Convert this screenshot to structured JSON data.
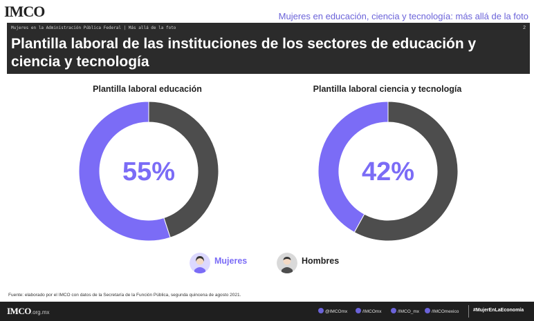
{
  "brand": {
    "logo": "IMCO"
  },
  "report_title": "Mujeres en educación, ciencia y tecnología: más allá de la foto",
  "header": {
    "breadcrumb": "Mujeres en la Administración Pública Federal | Más allá de la foto",
    "page_number": "2",
    "title": "Plantilla laboral de las instituciones de los sectores de educación y ciencia y tecnología"
  },
  "colors": {
    "mujeres": "#7b6cf6",
    "hombres": "#4d4d4d",
    "accent": "#6b63d9"
  },
  "chart_data": [
    {
      "type": "pie",
      "title": "Plantilla laboral educación",
      "categories": [
        "Mujeres",
        "Hombres"
      ],
      "values": [
        55,
        45
      ],
      "center_label": "55%"
    },
    {
      "type": "pie",
      "title": "Plantilla laboral ciencia y tecnología",
      "categories": [
        "Mujeres",
        "Hombres"
      ],
      "values": [
        42,
        58
      ],
      "center_label": "42%"
    }
  ],
  "legend": {
    "mujeres": "Mujeres",
    "hombres": "Hombres"
  },
  "source": "Fuente: elaborado por el IMCO con datos de la Secretaría de la Función Pública, segunda quincena de agosto 2021.",
  "footer": {
    "logo": "IMCO",
    "domain": ".org.mx",
    "social": [
      "@IMCOmx",
      "/IMCOmx",
      "/IMCO_mx",
      "/IMCOmexico"
    ],
    "hashtag": "#MujerEnLaEconomía"
  }
}
